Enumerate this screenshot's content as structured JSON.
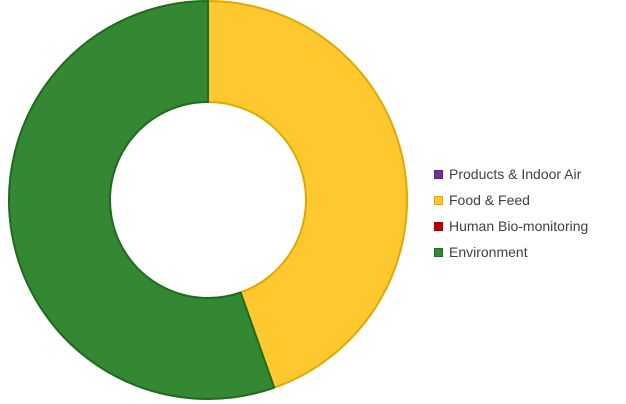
{
  "chart_data": {
    "type": "pie",
    "variant": "doughnut",
    "title": "",
    "categories": [
      "Products & Indoor Air",
      "Food & Feed",
      "Human Bio-monitoring",
      "Environment"
    ],
    "values": [
      0,
      44.6,
      0,
      55.4
    ],
    "colors": [
      "#7030a0",
      "#ffc82e",
      "#c00000",
      "#348733"
    ],
    "stroke_colors": [
      "#5a2580",
      "#e0a800",
      "#a00000",
      "#1f6b1e"
    ],
    "legend_position": "right"
  }
}
